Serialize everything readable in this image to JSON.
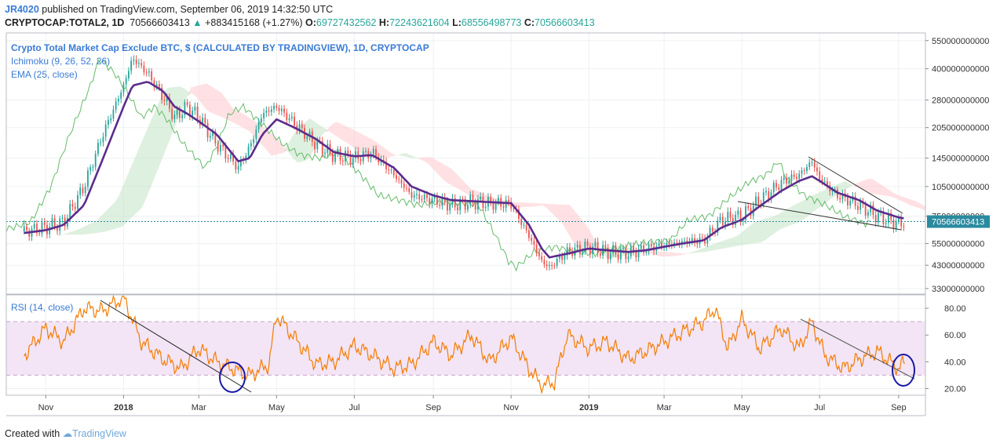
{
  "header": {
    "author": "JR4020",
    "published": "published on TradingView.com, September 06, 2019 14:32:50 UTC",
    "symbol": "CRYPTOCAP:TOTAL2, 1D",
    "last": "70566603413",
    "change": "+883415168 (+1.27%)",
    "o_label": "O:",
    "o": "69727432562",
    "h_label": "H:",
    "h": "72243621604",
    "l_label": "L:",
    "l": "68556498773",
    "c_label": "C:",
    "c": "70566603413"
  },
  "legend": {
    "title": "Crypto Total Market Cap Exclude BTC, $ (CALCULATED BY TRADINGVIEW), 1D, CRYPTOCAP",
    "ichimoku": "Ichimoku (9, 26, 52, 26)",
    "ema": "EMA (25, close)",
    "rsi": "RSI (14, close)"
  },
  "footer": {
    "created_with": "Created with",
    "brand": "TradingView"
  },
  "colors": {
    "ema": "#5b2c8c",
    "price_up": "#26a69a",
    "price_down": "#ef5350",
    "kumo_bull": "#c8e6c9",
    "kumo_bear": "#ffcdd2",
    "rsi": "#f57c00",
    "rsi_band": "#f3e5f5",
    "trendline": "#333333",
    "circle": "#1a1aa6",
    "last_price_bg": "#2a8a9f"
  },
  "chart_data": [
    {
      "type": "line",
      "name": "price",
      "scale": "log",
      "x_ticks": [
        "Nov",
        "2018",
        "Mar",
        "May",
        "Jul",
        "Sep",
        "Nov",
        "2019",
        "Mar",
        "May",
        "Jul",
        "Sep"
      ],
      "y_ticks": [
        550000000000,
        400000000000,
        280000000000,
        205000000000,
        145000000000,
        105000000000,
        75000000000,
        55000000000,
        43000000000,
        33000000000
      ],
      "y_tick_labels": [
        "550000000000",
        "400000000000",
        "280000000000",
        "205000000000",
        "145000000000",
        "105000000000",
        "75000000000",
        "55000000000",
        "43000000000",
        "33000000000"
      ],
      "last_price_label": "70566603413",
      "x": [
        "2017-10-15",
        "2017-11-01",
        "2017-11-15",
        "2017-12-01",
        "2017-12-15",
        "2018-01-01",
        "2018-01-08",
        "2018-01-20",
        "2018-02-01",
        "2018-02-10",
        "2018-02-20",
        "2018-03-01",
        "2018-03-15",
        "2018-04-01",
        "2018-04-10",
        "2018-04-20",
        "2018-05-01",
        "2018-05-15",
        "2018-06-01",
        "2018-06-15",
        "2018-07-01",
        "2018-07-15",
        "2018-08-01",
        "2018-08-15",
        "2018-09-01",
        "2018-09-15",
        "2018-10-01",
        "2018-10-15",
        "2018-11-01",
        "2018-11-15",
        "2018-11-25",
        "2018-12-01",
        "2018-12-15",
        "2019-01-01",
        "2019-01-15",
        "2019-02-01",
        "2019-02-15",
        "2019-03-01",
        "2019-03-15",
        "2019-04-01",
        "2019-04-15",
        "2019-05-01",
        "2019-05-15",
        "2019-06-01",
        "2019-06-15",
        "2019-06-25",
        "2019-07-01",
        "2019-07-15",
        "2019-08-01",
        "2019-08-15",
        "2019-09-01",
        "2019-09-06"
      ],
      "close": [
        63000000000,
        66000000000,
        70000000000,
        105000000000,
        185000000000,
        330000000000,
        450000000000,
        380000000000,
        290000000000,
        230000000000,
        260000000000,
        230000000000,
        170000000000,
        130000000000,
        165000000000,
        240000000000,
        260000000000,
        215000000000,
        170000000000,
        150000000000,
        145000000000,
        155000000000,
        120000000000,
        95000000000,
        90000000000,
        85000000000,
        88000000000,
        87000000000,
        86000000000,
        60000000000,
        45000000000,
        42000000000,
        50000000000,
        53000000000,
        50000000000,
        49000000000,
        52000000000,
        54000000000,
        56000000000,
        57000000000,
        72000000000,
        75000000000,
        90000000000,
        110000000000,
        120000000000,
        140000000000,
        115000000000,
        95000000000,
        85000000000,
        75000000000,
        69000000000,
        70566603413
      ],
      "ema": [
        62000000000,
        64000000000,
        68000000000,
        85000000000,
        140000000000,
        260000000000,
        330000000000,
        345000000000,
        310000000000,
        260000000000,
        240000000000,
        220000000000,
        190000000000,
        140000000000,
        145000000000,
        190000000000,
        225000000000,
        205000000000,
        180000000000,
        155000000000,
        148000000000,
        150000000000,
        130000000000,
        105000000000,
        95000000000,
        90000000000,
        89000000000,
        88000000000,
        87000000000,
        68000000000,
        52000000000,
        47000000000,
        49000000000,
        52000000000,
        51000000000,
        50000000000,
        51000000000,
        53000000000,
        55000000000,
        57000000000,
        66000000000,
        72000000000,
        84000000000,
        100000000000,
        112000000000,
        118000000000,
        112000000000,
        98000000000,
        90000000000,
        80000000000,
        74000000000,
        73000000000
      ]
    },
    {
      "type": "line",
      "name": "rsi",
      "y_ticks": [
        80,
        60,
        40,
        20
      ],
      "y_tick_labels": [
        "80.00",
        "60.00",
        "40.00",
        "20.00"
      ],
      "bands": [
        70,
        30
      ],
      "ylim": [
        15,
        90
      ],
      "x": [
        "2017-10-15",
        "2017-11-01",
        "2017-11-15",
        "2017-12-01",
        "2017-12-15",
        "2018-01-01",
        "2018-01-15",
        "2018-02-01",
        "2018-02-15",
        "2018-03-01",
        "2018-03-15",
        "2018-04-01",
        "2018-04-10",
        "2018-04-25",
        "2018-05-01",
        "2018-05-15",
        "2018-06-01",
        "2018-06-15",
        "2018-07-01",
        "2018-07-15",
        "2018-08-01",
        "2018-08-15",
        "2018-09-01",
        "2018-09-15",
        "2018-10-01",
        "2018-10-15",
        "2018-11-01",
        "2018-11-15",
        "2018-11-25",
        "2018-12-05",
        "2018-12-15",
        "2019-01-01",
        "2019-01-15",
        "2019-02-01",
        "2019-02-15",
        "2019-03-01",
        "2019-03-15",
        "2019-04-01",
        "2019-04-10",
        "2019-04-20",
        "2019-05-01",
        "2019-05-15",
        "2019-06-01",
        "2019-06-15",
        "2019-06-25",
        "2019-07-05",
        "2019-07-20",
        "2019-08-01",
        "2019-08-15",
        "2019-09-01",
        "2019-09-06"
      ],
      "values": [
        45,
        65,
        55,
        80,
        78,
        88,
        55,
        42,
        35,
        50,
        40,
        33,
        30,
        38,
        75,
        58,
        38,
        40,
        52,
        45,
        35,
        38,
        55,
        45,
        60,
        40,
        58,
        35,
        22,
        25,
        60,
        50,
        55,
        42,
        48,
        55,
        62,
        70,
        80,
        50,
        72,
        50,
        65,
        50,
        70,
        45,
        35,
        42,
        48,
        35,
        40
      ]
    }
  ]
}
